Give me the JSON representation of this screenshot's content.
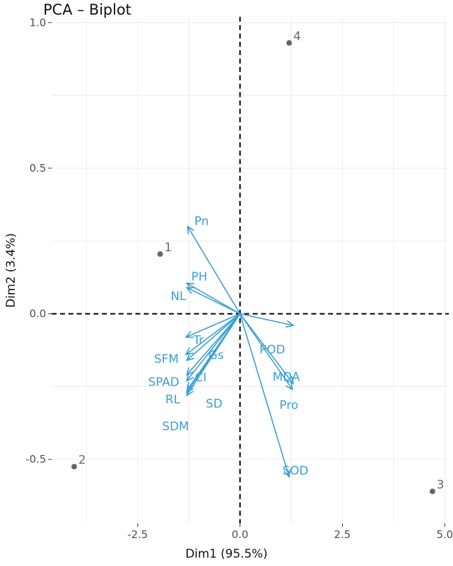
{
  "chart_data": {
    "type": "scatter",
    "title": "PCA – Biplot",
    "xlabel": "Dim1 (95.5%)",
    "ylabel": "Dim2 (3.4%)",
    "xlim": [
      -4.6,
      5.1
    ],
    "ylim": [
      -0.72,
      1.02
    ],
    "x_ticks": [
      -2.5,
      0.0,
      2.5,
      5.0
    ],
    "x_tick_labels": [
      "-2.5",
      "0.0",
      "2.5",
      "5.0"
    ],
    "y_ticks": [
      -0.5,
      0.0,
      0.5,
      1.0
    ],
    "y_tick_labels": [
      "-0.5",
      "0.0",
      "0.5",
      "1.0"
    ],
    "grid": true,
    "colors": {
      "points": "#666666",
      "arrows": "#3a9fd4",
      "grid": "#ebebeb",
      "reference": "#000000"
    },
    "points": [
      {
        "label": "1",
        "x": -1.95,
        "y": 0.205
      },
      {
        "label": "2",
        "x": -4.05,
        "y": -0.525
      },
      {
        "label": "3",
        "x": 4.7,
        "y": -0.61
      },
      {
        "label": "4",
        "x": 1.2,
        "y": 0.93
      }
    ],
    "variables": [
      {
        "label": "Pn",
        "x": -1.28,
        "y": 0.3
      },
      {
        "label": "PH",
        "x": -1.3,
        "y": 0.105
      },
      {
        "label": "NL",
        "x": -1.3,
        "y": 0.09
      },
      {
        "label": "Tr",
        "x": -1.32,
        "y": -0.08
      },
      {
        "label": "SFM",
        "x": -1.32,
        "y": -0.14
      },
      {
        "label": "Gs",
        "x": -1.3,
        "y": -0.16
      },
      {
        "label": "SPAD",
        "x": -1.3,
        "y": -0.21
      },
      {
        "label": "CI",
        "x": -1.3,
        "y": -0.23
      },
      {
        "label": "RL",
        "x": -1.3,
        "y": -0.27
      },
      {
        "label": "SD",
        "x": -1.28,
        "y": -0.26
      },
      {
        "label": "SDM",
        "x": -1.3,
        "y": -0.28
      },
      {
        "label": "POD",
        "x": 1.3,
        "y": -0.04
      },
      {
        "label": "MDA",
        "x": 1.3,
        "y": -0.24
      },
      {
        "label": "Pro",
        "x": 1.28,
        "y": -0.26
      },
      {
        "label": "SOD",
        "x": 1.2,
        "y": -0.56
      }
    ]
  }
}
